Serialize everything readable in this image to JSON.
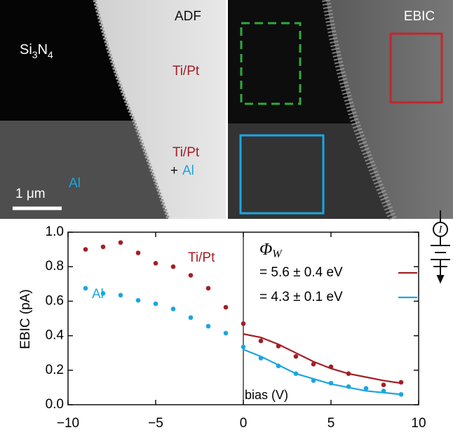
{
  "images": {
    "left": {
      "label": "ADF",
      "material": [
        "Si",
        "3",
        "N",
        "4"
      ],
      "region_top": "Ti/Pt",
      "region_bottom": "Ti/Pt",
      "plus": "+",
      "plus_al": "Al",
      "al": "Al",
      "scale_bar": "1 μm"
    },
    "right": {
      "label": "EBIC"
    }
  },
  "circuit_label": "I",
  "chart_data": {
    "type": "scatter",
    "ylabel": "EBIC (pA)",
    "annotation": "bias (V)",
    "legend_title": [
      "Φ",
      "W"
    ],
    "xlim": [
      -10,
      10
    ],
    "ylim": [
      0,
      1
    ],
    "xticks": [
      {
        "value": -10,
        "label": "−10"
      },
      {
        "value": -5,
        "label": "−5"
      },
      0,
      5,
      10
    ],
    "yticks": [
      {
        "value": 0,
        "label": "0.0"
      },
      0.2,
      0.4,
      0.6,
      0.8,
      {
        "value": 1,
        "label": "1.0"
      }
    ],
    "series": [
      {
        "name": "Ti/Pt",
        "color": "#a31f24",
        "style": "dots",
        "x": [
          -9,
          -8,
          -7,
          -6,
          -5,
          -4,
          -3,
          -2,
          -1,
          0,
          1,
          2,
          3,
          4,
          5,
          6,
          8,
          9
        ],
        "values": [
          0.9,
          0.915,
          0.94,
          0.88,
          0.82,
          0.8,
          0.75,
          0.675,
          0.565,
          0.47,
          0.37,
          0.34,
          0.28,
          0.235,
          0.22,
          0.18,
          0.115,
          0.13
        ]
      },
      {
        "name": "Al",
        "color": "#1aa6e0",
        "style": "dots",
        "x": [
          -9,
          -8,
          -7,
          -6,
          -5,
          -4,
          -3,
          -2,
          -1,
          0,
          1,
          2,
          3,
          4,
          5,
          6,
          7,
          8,
          9
        ],
        "values": [
          0.675,
          0.645,
          0.635,
          0.605,
          0.585,
          0.555,
          0.505,
          0.455,
          0.415,
          0.335,
          0.27,
          0.225,
          0.18,
          0.14,
          0.125,
          0.105,
          0.095,
          0.08,
          0.06
        ]
      },
      {
        "name": "= 5.6 ± 0.4 eV",
        "color": "#a31f24",
        "style": "line",
        "x": [
          0,
          1,
          2,
          3,
          4,
          5,
          6,
          7,
          8,
          9
        ],
        "values": [
          0.41,
          0.39,
          0.35,
          0.3,
          0.25,
          0.21,
          0.18,
          0.16,
          0.14,
          0.125
        ]
      },
      {
        "name": "= 4.3 ± 0.1 eV",
        "color": "#1aa6e0",
        "style": "line",
        "x": [
          0,
          1,
          2,
          3,
          4,
          5,
          6,
          7,
          8,
          9
        ],
        "values": [
          0.32,
          0.28,
          0.23,
          0.18,
          0.15,
          0.12,
          0.1,
          0.08,
          0.07,
          0.06
        ]
      }
    ]
  }
}
